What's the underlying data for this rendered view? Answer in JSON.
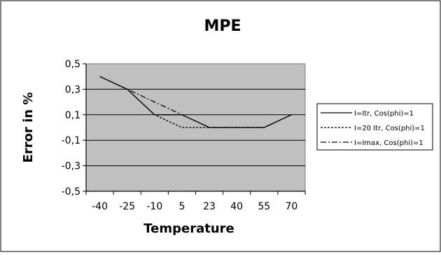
{
  "chart_data": {
    "type": "line",
    "title": "MPE",
    "xlabel": "Temperature",
    "ylabel": "Error in %",
    "categories": [
      "-40",
      "-25",
      "-10",
      "5",
      "23",
      "40",
      "55",
      "70"
    ],
    "y_ticks": [
      "0,5",
      "0,3",
      "0,1",
      "-0,1",
      "-0,3",
      "-0,5"
    ],
    "ylim": [
      -0.5,
      0.5
    ],
    "grid": true,
    "legend_position": "right",
    "plot_background": "#c0c0c0",
    "series": [
      {
        "name": "I=Itr, Cos(phi)=1",
        "style": "solid",
        "values": [
          0.4,
          0.3,
          0.1,
          0.1,
          0.0,
          0.0,
          0.0,
          0.1
        ]
      },
      {
        "name": "I=20 Itr, Cos(phi)=1",
        "style": "dashed",
        "values": [
          0.4,
          0.3,
          0.1,
          0.0,
          0.0,
          0.0,
          0.0,
          0.1
        ]
      },
      {
        "name": "I=Imax, Cos(phi)=1",
        "style": "dashdot",
        "values": [
          0.4,
          0.3,
          0.2,
          0.1,
          0.0,
          0.0,
          0.0,
          0.1
        ]
      }
    ]
  }
}
